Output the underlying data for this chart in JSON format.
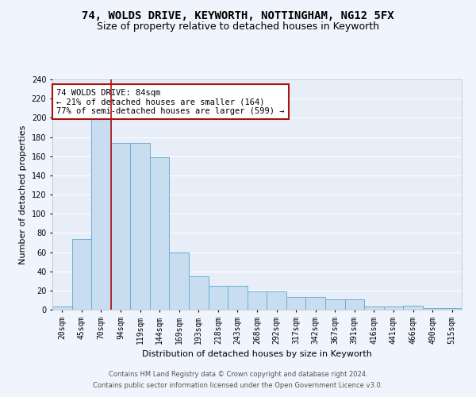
{
  "title": "74, WOLDS DRIVE, KEYWORTH, NOTTINGHAM, NG12 5FX",
  "subtitle": "Size of property relative to detached houses in Keyworth",
  "xlabel": "Distribution of detached houses by size in Keyworth",
  "ylabel": "Number of detached properties",
  "categories": [
    "20sqm",
    "45sqm",
    "70sqm",
    "94sqm",
    "119sqm",
    "144sqm",
    "169sqm",
    "193sqm",
    "218sqm",
    "243sqm",
    "268sqm",
    "292sqm",
    "317sqm",
    "342sqm",
    "367sqm",
    "391sqm",
    "416sqm",
    "441sqm",
    "466sqm",
    "490sqm",
    "515sqm"
  ],
  "values": [
    3,
    74,
    201,
    174,
    174,
    159,
    60,
    35,
    25,
    25,
    19,
    19,
    13,
    13,
    11,
    11,
    3,
    3,
    4,
    2,
    2
  ],
  "bar_color": "#c9ddf0",
  "bar_edge_color": "#6baed6",
  "bg_color": "#e8eef8",
  "grid_color": "#ffffff",
  "vline_x_index": 2,
  "vline_color": "#aa1111",
  "annotation_text": "74 WOLDS DRIVE: 84sqm\n← 21% of detached houses are smaller (164)\n77% of semi-detached houses are larger (599) →",
  "annotation_box_color": "#ffffff",
  "annotation_box_edge": "#aa1111",
  "ylim": [
    0,
    240
  ],
  "yticks": [
    0,
    20,
    40,
    60,
    80,
    100,
    120,
    140,
    160,
    180,
    200,
    220,
    240
  ],
  "footer1": "Contains HM Land Registry data © Crown copyright and database right 2024.",
  "footer2": "Contains public sector information licensed under the Open Government Licence v3.0.",
  "title_fontsize": 10,
  "subtitle_fontsize": 9,
  "tick_fontsize": 7,
  "ylabel_fontsize": 8,
  "xlabel_fontsize": 8,
  "annotation_fontsize": 7.5,
  "footer_fontsize": 6
}
